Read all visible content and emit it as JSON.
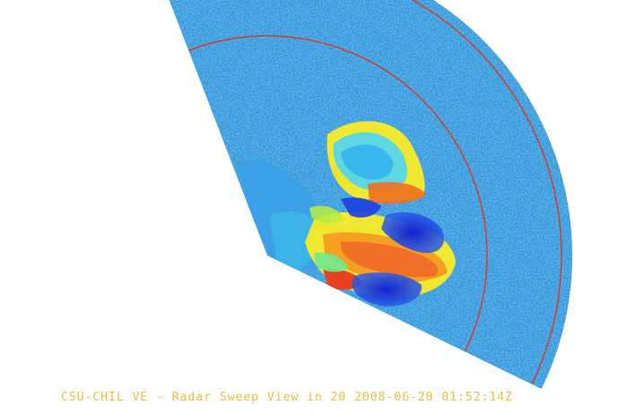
{
  "caption": "CSU-CHIL VE - Radar Sweep View in 20 2008-06-20 01:52:14Z",
  "colors": {
    "background": "#ffffff",
    "caption": "#e8c040",
    "range_ring": "#d83a28",
    "colormap": [
      "#1a2fe0",
      "#1f6ee8",
      "#2a9be8",
      "#3cc8e8",
      "#4fe0d8",
      "#70e890",
      "#b8ec40",
      "#f0e830",
      "#f5b020",
      "#f07020",
      "#e84020"
    ]
  },
  "icons": [
    "radar-sector-icon"
  ]
}
